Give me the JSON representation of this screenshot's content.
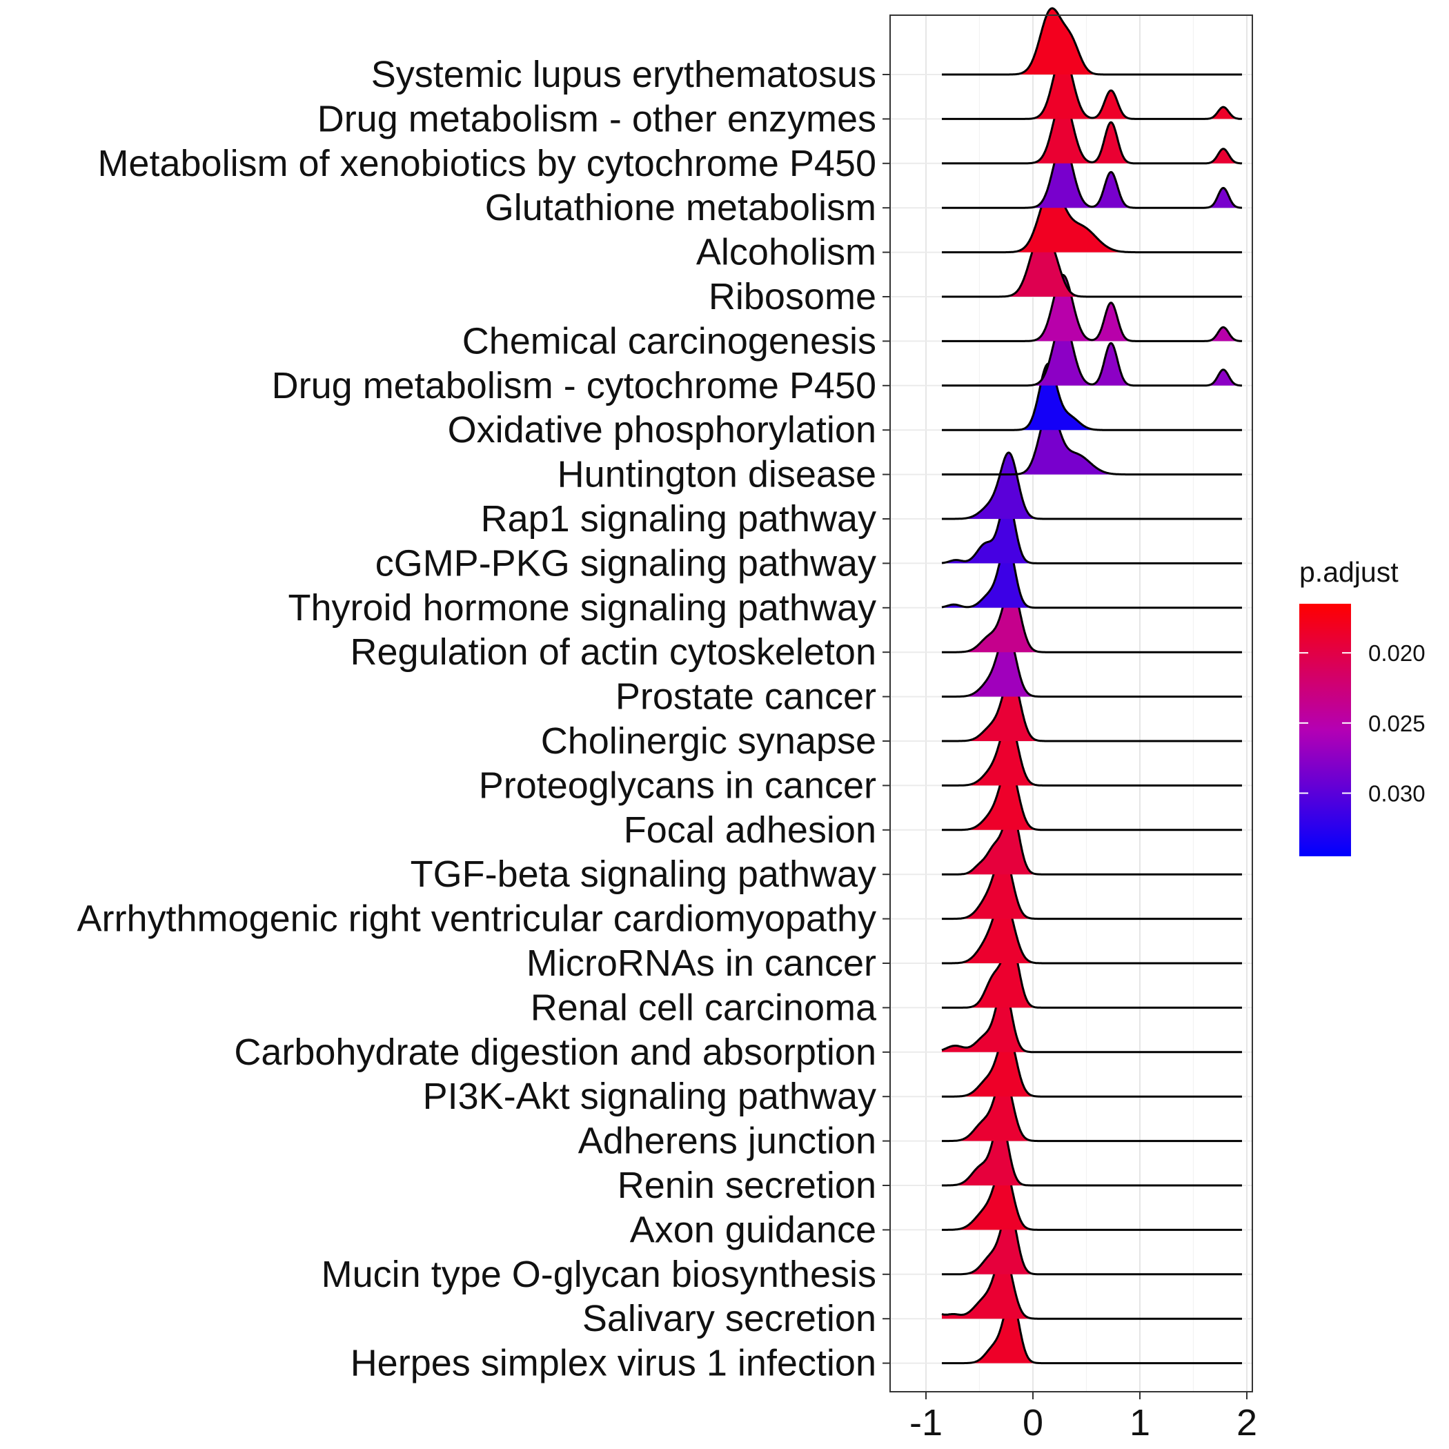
{
  "chart_data": {
    "type": "ridgeline",
    "x_range": [
      -1.3,
      2.1
    ],
    "x_ticks": [
      "-1",
      "0",
      "1",
      "2"
    ],
    "grid": true,
    "legend": {
      "title": "p.adjust",
      "position": "right",
      "range": [
        0.0165,
        0.0345
      ],
      "ticks": [
        "0.020",
        "0.025",
        "0.030"
      ],
      "tick_values": [
        0.02,
        0.025,
        0.03
      ],
      "colors": {
        "low": "#ff0000",
        "mid": "#b400b4",
        "high": "#0000ff"
      }
    },
    "series": [
      {
        "name": "Systemic lupus erythematosus",
        "p": 0.018,
        "peaks": [
          [
            0.17,
            0.1,
            1.0
          ],
          [
            0.36,
            0.08,
            0.45
          ]
        ]
      },
      {
        "name": "Drug metabolism - other enzymes",
        "p": 0.0185,
        "peaks": [
          [
            0.28,
            0.09,
            1.0
          ],
          [
            0.73,
            0.06,
            0.43
          ],
          [
            1.78,
            0.05,
            0.18
          ]
        ]
      },
      {
        "name": "Metabolism of xenobiotics by cytochrome P450",
        "p": 0.019,
        "peaks": [
          [
            0.28,
            0.09,
            1.0
          ],
          [
            0.73,
            0.06,
            0.62
          ],
          [
            1.78,
            0.05,
            0.22
          ]
        ]
      },
      {
        "name": "Glutathione metabolism",
        "p": 0.0285,
        "peaks": [
          [
            0.28,
            0.09,
            1.0
          ],
          [
            0.73,
            0.06,
            0.54
          ],
          [
            1.78,
            0.05,
            0.3
          ]
        ]
      },
      {
        "name": "Alcoholism",
        "p": 0.0182,
        "peaks": [
          [
            0.17,
            0.11,
            1.0
          ],
          [
            0.45,
            0.14,
            0.4
          ]
        ]
      },
      {
        "name": "Ribosome",
        "p": 0.0205,
        "peaks": [
          [
            0.07,
            0.1,
            1.0
          ],
          [
            0.2,
            0.08,
            0.35
          ]
        ]
      },
      {
        "name": "Chemical carcinogenesis",
        "p": 0.025,
        "peaks": [
          [
            0.28,
            0.09,
            1.0
          ],
          [
            0.73,
            0.06,
            0.58
          ],
          [
            1.78,
            0.05,
            0.21
          ]
        ]
      },
      {
        "name": "Drug metabolism - cytochrome P450",
        "p": 0.0275,
        "peaks": [
          [
            0.28,
            0.09,
            1.0
          ],
          [
            0.73,
            0.06,
            0.64
          ],
          [
            1.78,
            0.05,
            0.24
          ]
        ]
      },
      {
        "name": "Oxidative phosphorylation",
        "p": 0.0335,
        "peaks": [
          [
            0.14,
            0.08,
            1.0
          ],
          [
            0.34,
            0.09,
            0.2
          ]
        ]
      },
      {
        "name": "Huntington disease",
        "p": 0.0285,
        "peaks": [
          [
            0.15,
            0.09,
            1.0
          ],
          [
            0.4,
            0.13,
            0.32
          ]
        ]
      },
      {
        "name": "Rap1 signaling pathway",
        "p": 0.03,
        "peaks": [
          [
            -0.22,
            0.08,
            1.0
          ],
          [
            -0.38,
            0.1,
            0.22
          ]
        ]
      },
      {
        "name": "cGMP-PKG signaling pathway",
        "p": 0.031,
        "peaks": [
          [
            -0.24,
            0.07,
            1.0
          ],
          [
            -0.44,
            0.08,
            0.3
          ],
          [
            -0.72,
            0.06,
            0.05
          ]
        ]
      },
      {
        "name": "Thyroid hormone signaling pathway",
        "p": 0.0315,
        "peaks": [
          [
            -0.24,
            0.07,
            1.0
          ],
          [
            -0.4,
            0.08,
            0.2
          ],
          [
            -0.74,
            0.06,
            0.05
          ]
        ]
      },
      {
        "name": "Regulation of actin cytoskeleton",
        "p": 0.0235,
        "peaks": [
          [
            -0.2,
            0.08,
            1.0
          ],
          [
            -0.4,
            0.09,
            0.24
          ]
        ]
      },
      {
        "name": "Prostate cancer",
        "p": 0.0265,
        "peaks": [
          [
            -0.24,
            0.08,
            1.0
          ],
          [
            -0.4,
            0.09,
            0.22
          ]
        ]
      },
      {
        "name": "Cholinergic synapse",
        "p": 0.0192,
        "peaks": [
          [
            -0.2,
            0.08,
            1.0
          ],
          [
            -0.38,
            0.09,
            0.22
          ]
        ]
      },
      {
        "name": "Proteoglycans in cancer",
        "p": 0.0188,
        "peaks": [
          [
            -0.22,
            0.08,
            1.0
          ],
          [
            -0.38,
            0.09,
            0.22
          ]
        ]
      },
      {
        "name": "Focal adhesion",
        "p": 0.0186,
        "peaks": [
          [
            -0.22,
            0.08,
            1.0
          ],
          [
            -0.38,
            0.09,
            0.22
          ]
        ]
      },
      {
        "name": "TGF-beta signaling pathway",
        "p": 0.0195,
        "peaks": [
          [
            -0.2,
            0.07,
            1.0
          ],
          [
            -0.36,
            0.07,
            0.4
          ],
          [
            -0.5,
            0.06,
            0.12
          ]
        ]
      },
      {
        "name": "Arrhythmogenic right ventricular cardiomyopathy",
        "p": 0.019,
        "peaks": [
          [
            -0.27,
            0.08,
            1.0
          ],
          [
            -0.42,
            0.09,
            0.3
          ]
        ]
      },
      {
        "name": "MicroRNAs in cancer",
        "p": 0.0188,
        "peaks": [
          [
            -0.27,
            0.09,
            1.0
          ],
          [
            -0.44,
            0.09,
            0.25
          ]
        ]
      },
      {
        "name": "Renal cell carcinoma",
        "p": 0.0188,
        "peaks": [
          [
            -0.2,
            0.07,
            1.0
          ],
          [
            -0.36,
            0.08,
            0.5
          ]
        ]
      },
      {
        "name": "Carbohydrate digestion and absorption",
        "p": 0.019,
        "peaks": [
          [
            -0.27,
            0.07,
            1.0
          ],
          [
            -0.44,
            0.09,
            0.25
          ],
          [
            -0.73,
            0.08,
            0.1
          ]
        ]
      },
      {
        "name": "PI3K-Akt signaling pathway",
        "p": 0.0185,
        "peaks": [
          [
            -0.24,
            0.08,
            1.0
          ],
          [
            -0.42,
            0.09,
            0.25
          ]
        ]
      },
      {
        "name": "Adherens junction",
        "p": 0.019,
        "peaks": [
          [
            -0.27,
            0.08,
            1.0
          ],
          [
            -0.46,
            0.09,
            0.28
          ]
        ]
      },
      {
        "name": "Renin secretion",
        "p": 0.0195,
        "peaks": [
          [
            -0.3,
            0.07,
            1.0
          ],
          [
            -0.48,
            0.09,
            0.3
          ]
        ]
      },
      {
        "name": "Axon guidance",
        "p": 0.0185,
        "peaks": [
          [
            -0.27,
            0.08,
            1.0
          ],
          [
            -0.44,
            0.1,
            0.3
          ]
        ]
      },
      {
        "name": "Mucin type O-glycan biosynthesis",
        "p": 0.0195,
        "peaks": [
          [
            -0.22,
            0.07,
            1.0
          ],
          [
            -0.38,
            0.09,
            0.3
          ]
        ]
      },
      {
        "name": "Salivary secretion",
        "p": 0.019,
        "peaks": [
          [
            -0.27,
            0.08,
            1.0
          ],
          [
            -0.45,
            0.1,
            0.3
          ],
          [
            -0.93,
            0.06,
            0.12
          ],
          [
            -0.75,
            0.07,
            0.07
          ]
        ]
      },
      {
        "name": "Herpes simplex virus 1 infection",
        "p": 0.0185,
        "peaks": [
          [
            -0.2,
            0.07,
            1.0
          ],
          [
            -0.36,
            0.08,
            0.25
          ]
        ]
      }
    ]
  }
}
